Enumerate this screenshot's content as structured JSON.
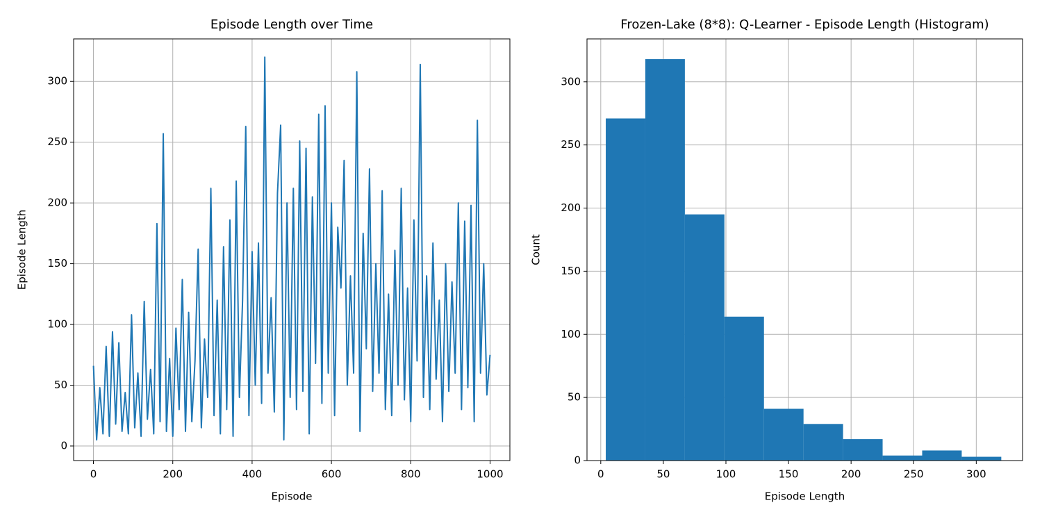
{
  "chart_data": [
    {
      "type": "line",
      "title": "Episode Length over Time",
      "xlabel": "Episode",
      "ylabel": "Episode Length",
      "color": "#1f77b4",
      "grid": true,
      "xlim": [
        -50,
        1050
      ],
      "ylim": [
        -12,
        335
      ],
      "xticks": [
        0,
        200,
        400,
        600,
        800,
        1000
      ],
      "yticks": [
        0,
        50,
        100,
        150,
        200,
        250,
        300
      ],
      "x": [
        0,
        8,
        16,
        24,
        32,
        40,
        48,
        56,
        64,
        72,
        80,
        88,
        96,
        104,
        112,
        120,
        128,
        136,
        144,
        152,
        160,
        168,
        176,
        184,
        192,
        200,
        208,
        216,
        224,
        232,
        240,
        248,
        256,
        264,
        272,
        280,
        288,
        296,
        304,
        312,
        320,
        328,
        336,
        344,
        352,
        360,
        368,
        376,
        384,
        392,
        400,
        408,
        416,
        424,
        432,
        440,
        448,
        456,
        464,
        472,
        480,
        488,
        496,
        504,
        512,
        520,
        528,
        536,
        544,
        552,
        560,
        568,
        576,
        584,
        592,
        600,
        608,
        616,
        624,
        632,
        640,
        648,
        656,
        664,
        672,
        680,
        688,
        696,
        704,
        712,
        720,
        728,
        736,
        744,
        752,
        760,
        768,
        776,
        784,
        792,
        800,
        808,
        816,
        824,
        832,
        840,
        848,
        856,
        864,
        872,
        880,
        888,
        896,
        904,
        912,
        920,
        928,
        936,
        944,
        952,
        960,
        968,
        976,
        984,
        992,
        1000
      ],
      "values": [
        66,
        5,
        48,
        10,
        82,
        8,
        94,
        18,
        85,
        12,
        44,
        10,
        108,
        15,
        60,
        8,
        119,
        22,
        63,
        10,
        183,
        20,
        257,
        12,
        72,
        8,
        97,
        30,
        137,
        12,
        110,
        20,
        70,
        162,
        15,
        88,
        40,
        212,
        25,
        120,
        10,
        164,
        30,
        186,
        8,
        218,
        40,
        120,
        263,
        25,
        160,
        50,
        167,
        35,
        320,
        60,
        122,
        28,
        208,
        264,
        5,
        200,
        40,
        212,
        30,
        251,
        45,
        245,
        10,
        205,
        68,
        273,
        35,
        280,
        60,
        200,
        25,
        180,
        130,
        235,
        50,
        140,
        60,
        308,
        12,
        175,
        80,
        228,
        45,
        150,
        60,
        210,
        30,
        125,
        25,
        161,
        50,
        212,
        38,
        130,
        20,
        186,
        70,
        314,
        40,
        140,
        30,
        167,
        55,
        120,
        20,
        150,
        45,
        135,
        60,
        200,
        30,
        185,
        48,
        198,
        20,
        268,
        60,
        150,
        42,
        75
      ]
    },
    {
      "type": "histogram",
      "title": "Frozen-Lake (8*8): Q-Learner - Episode Length (Histogram)",
      "xlabel": "Episode Length",
      "ylabel": "Count",
      "color": "#1f77b4",
      "grid": true,
      "xlim": [
        -11,
        337
      ],
      "ylim": [
        0,
        334
      ],
      "xticks": [
        0,
        50,
        100,
        150,
        200,
        250,
        300
      ],
      "yticks": [
        0,
        50,
        100,
        150,
        200,
        250,
        300
      ],
      "bins": [
        4,
        35.6,
        67.2,
        98.8,
        130.4,
        162,
        193.6,
        225.2,
        256.8,
        288.4,
        320
      ],
      "values": [
        271,
        318,
        195,
        114,
        41,
        29,
        17,
        4,
        8,
        3
      ]
    }
  ]
}
